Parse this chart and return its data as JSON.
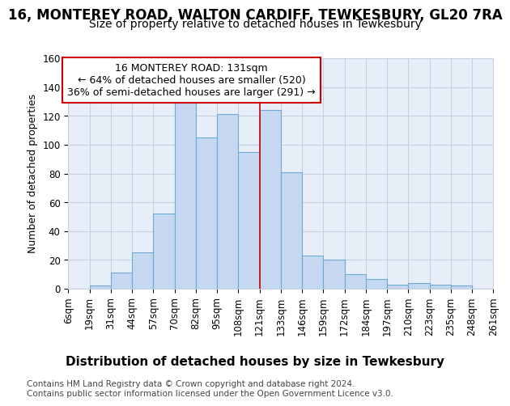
{
  "title": "16, MONTEREY ROAD, WALTON CARDIFF, TEWKESBURY, GL20 7RA",
  "subtitle": "Size of property relative to detached houses in Tewkesbury",
  "xlabel": "Distribution of detached houses by size in Tewkesbury",
  "ylabel": "Number of detached properties",
  "footer_line1": "Contains HM Land Registry data © Crown copyright and database right 2024.",
  "footer_line2": "Contains public sector information licensed under the Open Government Licence v3.0.",
  "bin_labels": [
    "6sqm",
    "19sqm",
    "31sqm",
    "44sqm",
    "57sqm",
    "70sqm",
    "82sqm",
    "95sqm",
    "108sqm",
    "121sqm",
    "133sqm",
    "146sqm",
    "159sqm",
    "172sqm",
    "184sqm",
    "197sqm",
    "210sqm",
    "223sqm",
    "235sqm",
    "248sqm",
    "261sqm"
  ],
  "bar_values": [
    0,
    2,
    11,
    25,
    52,
    131,
    105,
    121,
    95,
    124,
    81,
    23,
    20,
    10,
    7,
    3,
    4,
    3,
    2,
    0
  ],
  "bar_color": "#c5d8f0",
  "bar_edgecolor": "#6aaad4",
  "annotation_text": "16 MONTEREY ROAD: 131sqm\n← 64% of detached houses are smaller (520)\n36% of semi-detached houses are larger (291) →",
  "annotation_box_edgecolor": "#cc0000",
  "vline_color": "#cc0000",
  "vline_index": 9,
  "ylim": [
    0,
    160
  ],
  "yticks": [
    0,
    20,
    40,
    60,
    80,
    100,
    120,
    140,
    160
  ],
  "fig_background": "#ffffff",
  "plot_background": "#e8eef8",
  "grid_color": "#c8d0e0",
  "title_fontsize": 12,
  "subtitle_fontsize": 10,
  "ylabel_fontsize": 9,
  "xlabel_fontsize": 11,
  "tick_fontsize": 8.5,
  "annotation_fontsize": 9,
  "footer_fontsize": 7.5
}
